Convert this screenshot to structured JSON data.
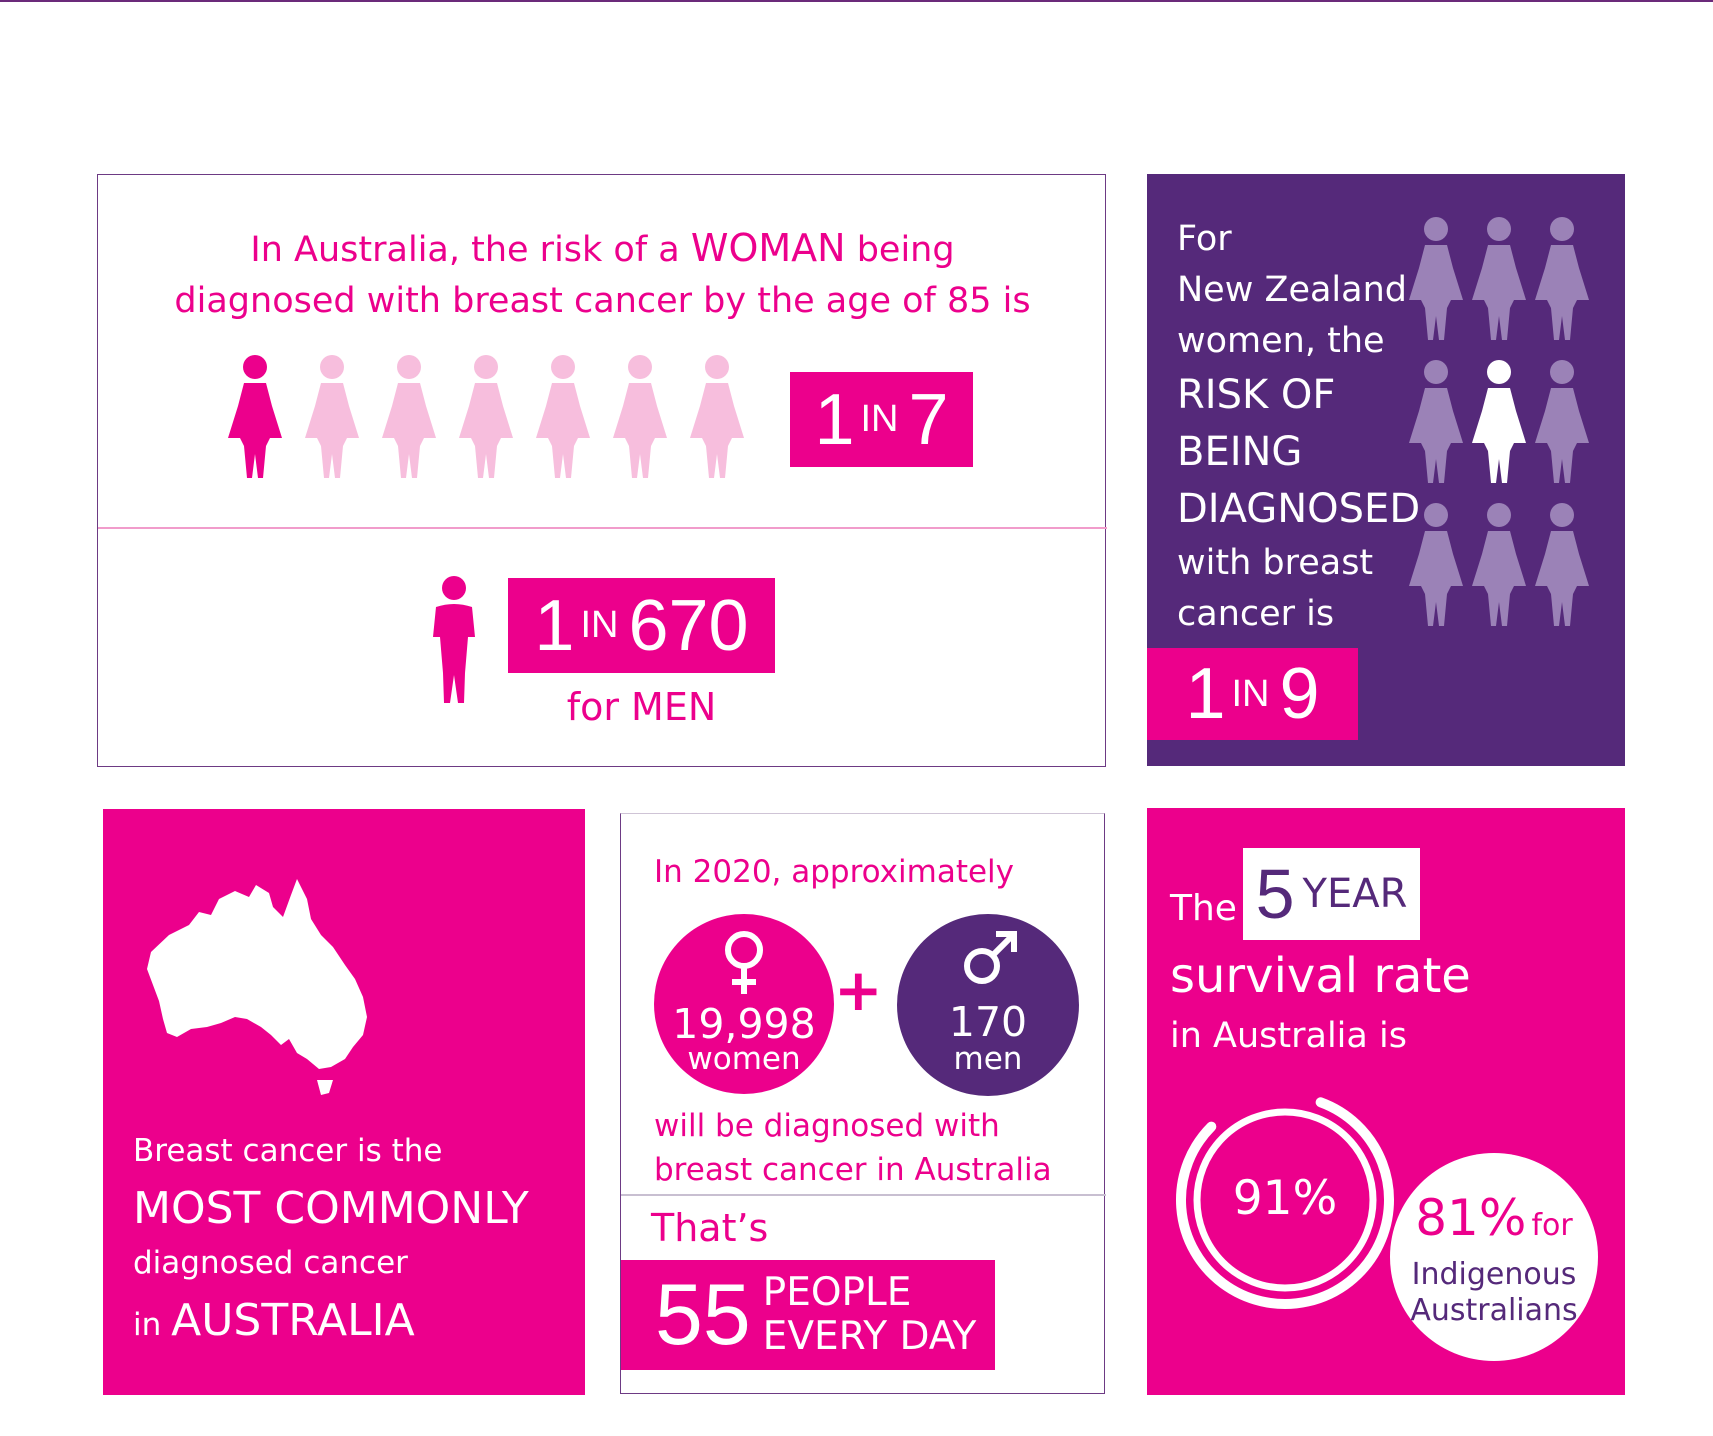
{
  "colors": {
    "pink": "#ec008c",
    "light_pink": "#f7bedd",
    "purple": "#55297a",
    "light_purple": "#9b82b7"
  },
  "australia_risk": {
    "intro_line1": "In Australia, the risk of a ",
    "intro_woman": "WOMAN",
    "intro_line1_end": " being",
    "intro_line2": "diagnosed with breast cancer by the age of 85 is",
    "women_ratio": {
      "one": "1",
      "in": "IN",
      "n": "7"
    },
    "men_ratio": {
      "one": "1",
      "in": "IN",
      "n": "670"
    },
    "men_label": "for MEN"
  },
  "nz_risk": {
    "lines": [
      "For",
      "New Zealand",
      "women, the"
    ],
    "caps_lines": [
      "RISK OF",
      "BEING",
      "DIAGNOSED"
    ],
    "end_lines": [
      "with breast",
      "cancer is"
    ],
    "ratio": {
      "one": "1",
      "in": "IN",
      "n": "9"
    }
  },
  "most_common": {
    "line1": "Breast cancer is the",
    "line2": "MOST COMMONLY",
    "line3": "diagnosed cancer",
    "line4_pre": "in ",
    "line4": "AUSTRALIA",
    "map_icon": "australia-map-icon"
  },
  "diagnosed_2020": {
    "intro": "In 2020, approximately",
    "women_count": "19,998",
    "women_label": "women",
    "plus": "+",
    "men_count": "170",
    "men_label": "men",
    "outro_line1": "will be diagnosed with",
    "outro_line2": "breast cancer in Australia",
    "thats": "That’s",
    "per_day_number": "55",
    "per_day_line1": "PEOPLE",
    "per_day_line2": "EVERY DAY"
  },
  "survival": {
    "the": "The",
    "five": "5",
    "year": "YEAR",
    "line2": "survival rate",
    "line3": "in Australia is",
    "main_percent": "91%",
    "main_fraction": 0.91,
    "indigenous_percent": "81%",
    "indigenous_for": "for",
    "indigenous_line1": "Indigenous",
    "indigenous_line2": "Australians"
  }
}
